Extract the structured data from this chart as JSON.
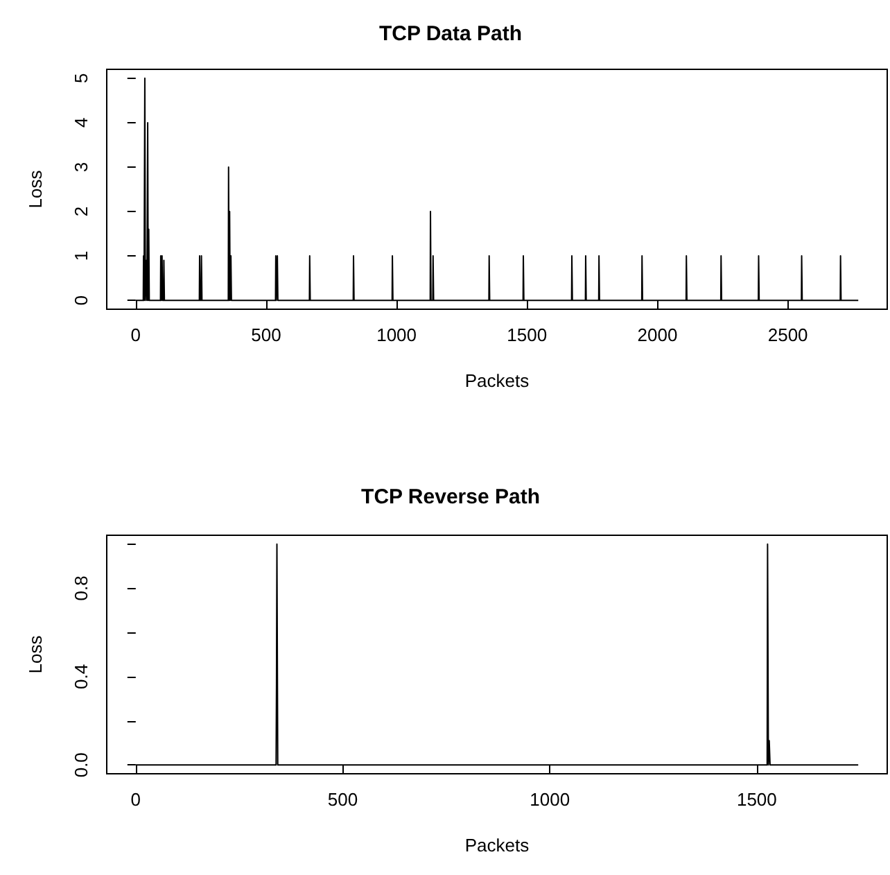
{
  "chart_data": [
    {
      "type": "line",
      "title": "TCP Data Path",
      "xlabel": "Packets",
      "ylabel": "Loss",
      "xlim": [
        -111,
        2881
      ],
      "ylim": [
        -0.2,
        5.2
      ],
      "xticks": [
        0,
        500,
        1000,
        1500,
        2000,
        2500
      ],
      "yticks": [
        0,
        1,
        2,
        3,
        4,
        5
      ],
      "grid": false,
      "marker": "none",
      "line_style": "solid",
      "series": [
        {
          "color": "#000000",
          "x": [
            0,
            29,
            30,
            32,
            34,
            35,
            37,
            40,
            41,
            43,
            45,
            46,
            48,
            49,
            50,
            52,
            95,
            96,
            98,
            100,
            101,
            103,
            107,
            108,
            110,
            244,
            245,
            247,
            251,
            252,
            254,
            355,
            356,
            358,
            359,
            360,
            362,
            364,
            365,
            367,
            536,
            537,
            539,
            542,
            543,
            545,
            666,
            667,
            669,
            834,
            835,
            837,
            983,
            984,
            986,
            1129,
            1130,
            1132,
            1139,
            1140,
            1142,
            1354,
            1355,
            1357,
            1485,
            1486,
            1488,
            1671,
            1672,
            1674,
            1724,
            1725,
            1727,
            1775,
            1776,
            1778,
            1940,
            1941,
            1943,
            2110,
            2111,
            2113,
            2243,
            2244,
            2246,
            2387,
            2388,
            2390,
            2552,
            2553,
            2555,
            2701,
            2702,
            2704,
            2770
          ],
          "values": [
            0,
            0,
            1,
            0,
            0,
            5,
            0,
            0,
            0.9,
            0,
            0,
            4,
            0,
            0,
            1.6,
            0,
            0,
            1,
            0,
            0,
            1,
            0,
            0,
            0.9,
            0,
            0,
            1,
            0,
            0,
            1,
            0,
            0,
            3,
            0,
            0,
            2,
            0,
            0,
            1,
            0,
            0,
            1,
            0,
            0,
            1,
            0,
            0,
            1,
            0,
            0,
            1,
            0,
            0,
            1,
            0,
            0,
            2,
            0,
            0,
            1,
            0,
            0,
            1,
            0,
            0,
            1,
            0,
            0,
            1,
            0,
            0,
            1,
            0,
            0,
            1,
            0,
            0,
            1,
            0,
            0,
            1,
            0,
            0,
            1,
            0,
            0,
            1,
            0,
            0,
            1,
            0,
            0,
            1,
            0,
            0
          ]
        }
      ]
    },
    {
      "type": "line",
      "title": "TCP Reverse Path",
      "xlabel": "Packets",
      "ylabel": "Loss",
      "xlim": [
        -70,
        1815
      ],
      "ylim": [
        -0.04,
        1.04
      ],
      "xticks": [
        0,
        500,
        1000,
        1500
      ],
      "yticks": [
        {
          "value": 0,
          "label": "0.0"
        },
        {
          "value": 0.2,
          "label": null
        },
        {
          "value": 0.4,
          "label": "0.4"
        },
        {
          "value": 0.6,
          "label": null
        },
        {
          "value": 0.8,
          "label": "0.8"
        },
        {
          "value": 1,
          "label": null
        }
      ],
      "grid": false,
      "marker": "none",
      "line_style": "solid",
      "series": [
        {
          "color": "#000000",
          "x": [
            0,
            339,
            340,
            341,
            343,
            1525,
            1526,
            1528,
            1529,
            1530,
            1532,
            1745
          ],
          "values": [
            0,
            0,
            0.37,
            1,
            0,
            0,
            1,
            0,
            0,
            0.11,
            0,
            0
          ]
        }
      ]
    }
  ]
}
